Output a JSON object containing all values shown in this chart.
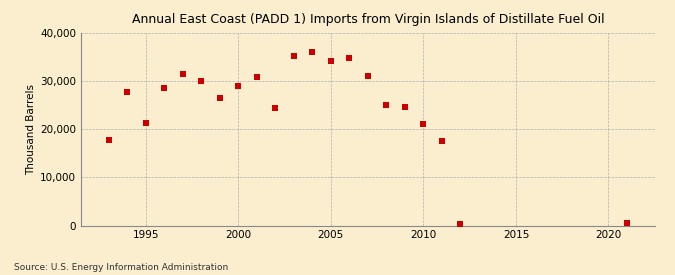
{
  "title": "Annual East Coast (PADD 1) Imports from Virgin Islands of Distillate Fuel Oil",
  "ylabel": "Thousand Barrels",
  "source": "Source: U.S. Energy Information Administration",
  "background_color": "#faeecf",
  "plot_bg_color": "#faeecf",
  "marker_color": "#cc0000",
  "xlim": [
    1991.5,
    2022.5
  ],
  "ylim": [
    0,
    40000
  ],
  "yticks": [
    0,
    10000,
    20000,
    30000,
    40000
  ],
  "xticks": [
    1995,
    2000,
    2005,
    2010,
    2015,
    2020
  ],
  "data": [
    {
      "year": 1993,
      "value": 17800
    },
    {
      "year": 1994,
      "value": 27700
    },
    {
      "year": 1995,
      "value": 21200
    },
    {
      "year": 1996,
      "value": 28500
    },
    {
      "year": 1997,
      "value": 31500
    },
    {
      "year": 1998,
      "value": 30000
    },
    {
      "year": 1999,
      "value": 26500
    },
    {
      "year": 2000,
      "value": 29000
    },
    {
      "year": 2001,
      "value": 30800
    },
    {
      "year": 2002,
      "value": 24500
    },
    {
      "year": 2003,
      "value": 35200
    },
    {
      "year": 2004,
      "value": 36000
    },
    {
      "year": 2005,
      "value": 34200
    },
    {
      "year": 2006,
      "value": 34800
    },
    {
      "year": 2007,
      "value": 31000
    },
    {
      "year": 2008,
      "value": 25000
    },
    {
      "year": 2009,
      "value": 24700
    },
    {
      "year": 2010,
      "value": 21000
    },
    {
      "year": 2011,
      "value": 17500
    },
    {
      "year": 2012,
      "value": 400
    },
    {
      "year": 2021,
      "value": 600
    }
  ]
}
